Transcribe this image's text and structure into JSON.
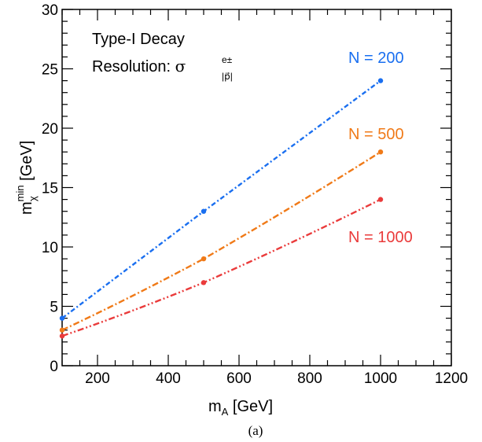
{
  "chart_data": {
    "type": "line",
    "xlabel_main": "m",
    "xlabel_sub": "A",
    "xlabel_unit": " [GeV]",
    "ylabel_main": "m",
    "ylabel_sup": "min",
    "ylabel_sub": "χ",
    "ylabel_unit": " [GeV]",
    "xlim": [
      100,
      1200
    ],
    "ylim": [
      0,
      30
    ],
    "xticks": [
      "200",
      "400",
      "600",
      "800",
      "1000",
      "1200"
    ],
    "yticks": [
      "0",
      "5",
      "10",
      "15",
      "20",
      "25",
      "30"
    ],
    "grid": false,
    "annotations": {
      "line1": "Type-I Decay",
      "line2_prefix": "Resolution: ",
      "sigma": "σ",
      "sigma_sup": "e±",
      "sigma_sub": "|p⃗|"
    },
    "caption": "(a)",
    "series": [
      {
        "name": "N = 200",
        "color": "#1a6ff0",
        "x": [
          100,
          500,
          1000
        ],
        "y": [
          4,
          13,
          24
        ]
      },
      {
        "name": "N = 500",
        "color": "#f07a18",
        "x": [
          100,
          500,
          1000
        ],
        "y": [
          3,
          9,
          18
        ]
      },
      {
        "name": "N = 1000",
        "color": "#ea3b3b",
        "x": [
          100,
          500,
          1000
        ],
        "y": [
          2.5,
          7,
          14
        ]
      }
    ]
  }
}
